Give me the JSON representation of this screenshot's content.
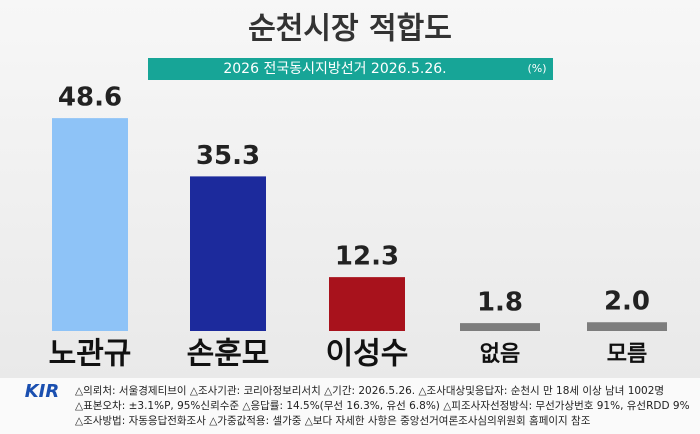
{
  "chart_data": {
    "type": "bar",
    "title": "순천시장 적합도",
    "subtitle": "2026 전국동시지방선거 2026.5.26.",
    "unit": "(%)",
    "categories": [
      "노관규",
      "손훈모",
      "이성수",
      "없음",
      "모름"
    ],
    "values": [
      48.6,
      35.3,
      12.3,
      1.8,
      2.0
    ],
    "value_labels": [
      "48.6",
      "35.3",
      "12.3",
      "1.8",
      "2.0"
    ],
    "colors": [
      "#8ec3f7",
      "#1c2a9c",
      "#a8121c",
      "#7d7d7d",
      "#7d7d7d"
    ],
    "logo": "KIR",
    "notes": [
      "△의뢰처: 서울경제티브이 △조사기관: 코리아정보리서치 △기간: 2026.5.26. △조사대상및응답자: 순천시 만 18세 이상 남녀 1002명",
      "△표본오차: ±3.1%P, 95%신뢰수준 △응답률: 14.5%(무선 16.3%, 유선 6.8%) △피조사자선정방식: 무선가상번호 91%, 유선RDD 9%",
      "△조사방법: 자동응답전화조사 △가중값적용: 셀가중 △보다 자세한 사항은 중앙선거여론조사심의위원회 홈페이지 참조"
    ]
  }
}
